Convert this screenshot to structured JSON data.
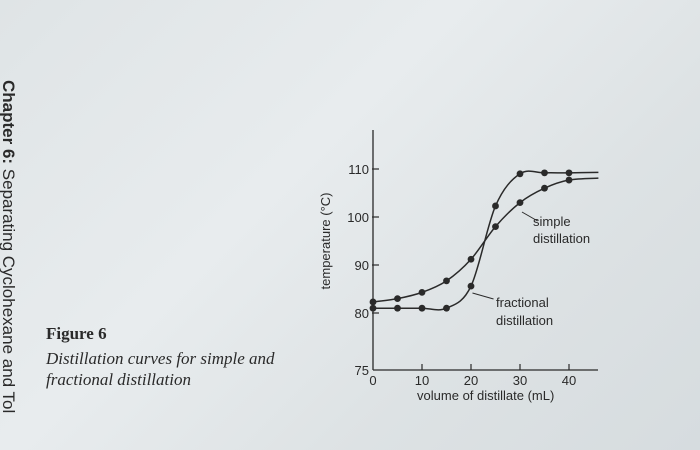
{
  "page": {
    "spine_bold": "Chapter 6:",
    "spine_rest": " Separating Cyclohexane and Tol"
  },
  "caption": {
    "title": "Figure 6",
    "text": "Distillation curves for simple and fractional distillation"
  },
  "chart_data": {
    "type": "line",
    "title": "",
    "xlabel": "volume of distillate (mL)",
    "ylabel": "temperature (°C)",
    "xlim": [
      0,
      46
    ],
    "ylim": [
      75,
      115
    ],
    "x_ticks": [
      0,
      10,
      20,
      30,
      40
    ],
    "y_ticks": [
      75,
      80,
      90,
      100,
      110
    ],
    "grid": false,
    "legend_position": "inline annotations",
    "x": [
      0,
      5,
      10,
      15,
      20,
      25,
      30,
      35,
      40
    ],
    "series": [
      {
        "name": "simple distillation",
        "values": [
          82.3,
          83.0,
          84.3,
          86.7,
          91.2,
          98.0,
          103.0,
          106.0,
          107.7
        ]
      },
      {
        "name": "fractional distillation",
        "values": [
          81.0,
          81.0,
          81.0,
          81.0,
          85.6,
          102.3,
          109.0,
          109.2,
          109.2
        ]
      }
    ],
    "annotations": [
      {
        "text_line1": "simple",
        "text_line2": "distillation",
        "target_series": "simple distillation"
      },
      {
        "text_line1": "fractional",
        "text_line2": "distillation",
        "target_series": "fractional distillation"
      }
    ]
  }
}
